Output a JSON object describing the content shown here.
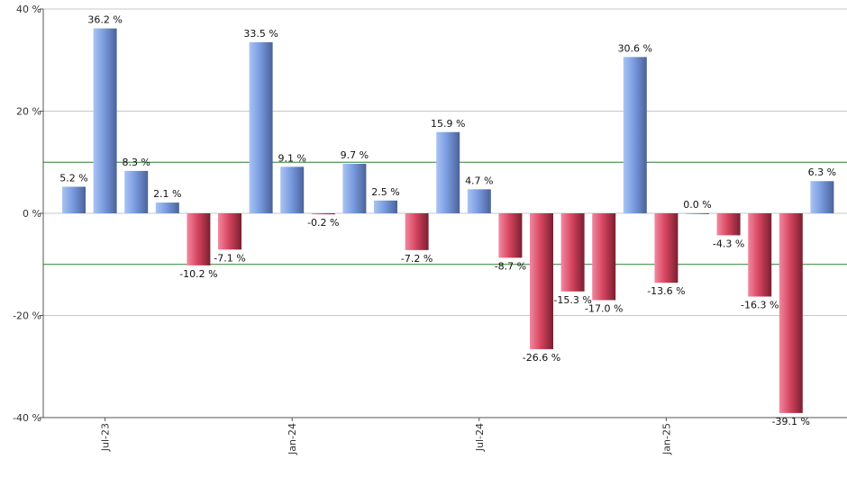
{
  "chart_data": {
    "type": "bar",
    "title": "",
    "xlabel": "",
    "ylabel": "",
    "ylim": [
      -40,
      40
    ],
    "yticks": [
      40,
      20,
      0,
      -20,
      -40
    ],
    "ytick_labels": [
      "40 %",
      "20 %",
      "0 %",
      "-20 %",
      "-40 %"
    ],
    "reference_lines": [
      10,
      -10
    ],
    "grid": true,
    "x_tick_labels": [
      {
        "label": "Jul-23",
        "bar_index": 1
      },
      {
        "label": "Jan-24",
        "bar_index": 7
      },
      {
        "label": "Jul-24",
        "bar_index": 13
      },
      {
        "label": "Jan-25",
        "bar_index": 19
      }
    ],
    "values": [
      5.2,
      36.2,
      8.3,
      2.1,
      -10.2,
      -7.1,
      33.5,
      9.1,
      -0.2,
      9.7,
      2.5,
      -7.2,
      15.9,
      4.7,
      -8.7,
      -26.6,
      -15.3,
      -17.0,
      30.6,
      -13.6,
      0.0,
      -4.3,
      -16.3,
      -39.1,
      6.3
    ],
    "labels": [
      "5.2 %",
      "36.2 %",
      "8.3 %",
      "2.1 %",
      "-10.2 %",
      "-7.1 %",
      "33.5 %",
      "9.1 %",
      "-0.2 %",
      "9.7 %",
      "2.5 %",
      "-7.2 %",
      "15.9 %",
      "4.7 %",
      "-8.7 %",
      "-26.6 %",
      "-15.3 %",
      "-17.0 %",
      "30.6 %",
      "-13.6 %",
      "0.0 %",
      "-4.3 %",
      "-16.3 %",
      "-39.1 %",
      "6.3 %"
    ],
    "colors": {
      "positive_light": "#a9c4f2",
      "positive_mid": "#7a9be0",
      "positive_dark": "#4a6299",
      "negative_light": "#f08aa0",
      "negative_mid": "#d84560",
      "negative_dark": "#7a1f30",
      "grid": "#c8c8c8",
      "reference": "#2e7d32",
      "axis": "#555555"
    }
  }
}
